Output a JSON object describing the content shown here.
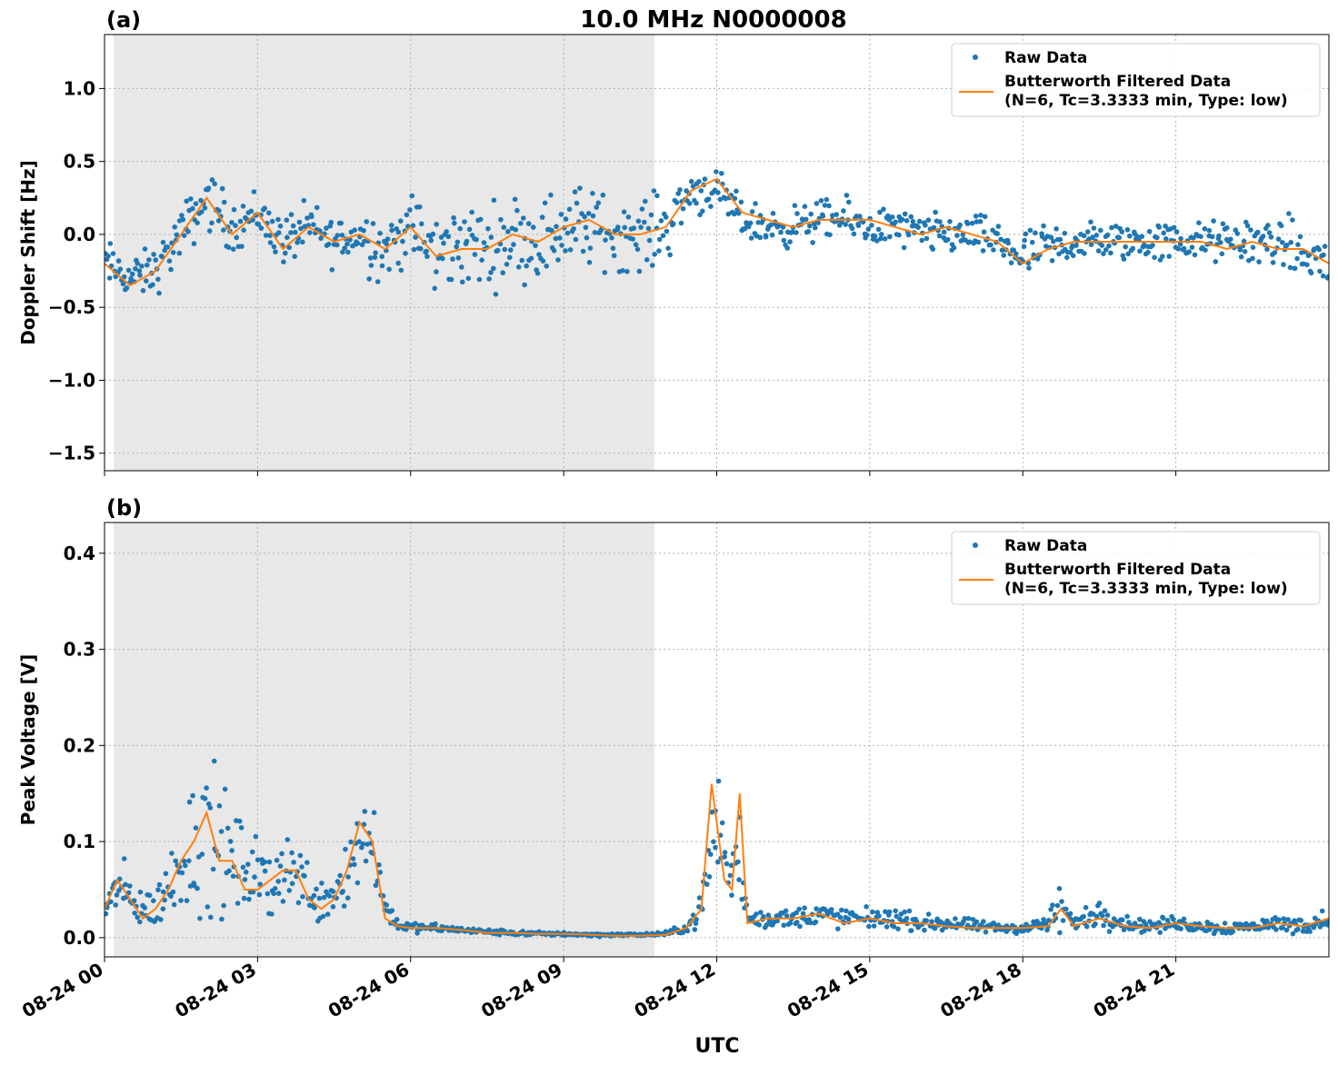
{
  "figure": {
    "title": "10.0 MHz N0000008",
    "xlabel": "UTC"
  },
  "chart_data": [
    {
      "type": "scatter",
      "panel_label": "(a)",
      "ylabel": "Doppler Shift [Hz]",
      "xlim": [
        0,
        24
      ],
      "ylim": [
        -1.62,
        1.37
      ],
      "yticks": [
        1.0,
        0.5,
        0.0,
        -0.5,
        -1.0,
        -1.5
      ],
      "ytick_labels": [
        "1.0",
        "0.5",
        "0.0",
        "−0.5",
        "−1.0",
        "−1.5"
      ],
      "xticks": [
        0,
        3,
        6,
        9,
        12,
        15,
        18,
        21
      ],
      "xtick_labels": [
        "",
        "",
        "",
        "",
        "",
        "",
        "",
        ""
      ],
      "shaded_region": [
        0.18,
        10.78
      ],
      "grid": true,
      "legend": {
        "placement": "top-right",
        "entries": [
          "Raw Data",
          "Butterworth Filtered Data",
          "(N=6, Tc=3.3333 min, Type: low)"
        ]
      },
      "series": [
        {
          "name": "Raw Data",
          "kind": "points",
          "x": [
            0.0,
            0.5,
            1.0,
            1.5,
            2.0,
            2.5,
            3.0,
            3.5,
            4.0,
            4.5,
            5.0,
            5.5,
            6.0,
            6.5,
            7.0,
            7.5,
            8.0,
            8.5,
            9.0,
            9.5,
            10.0,
            10.5,
            11.0,
            11.5,
            12.0,
            12.5,
            13.0,
            13.5,
            14.0,
            14.5,
            15.0,
            15.5,
            16.0,
            16.5,
            17.0,
            17.5,
            18.0,
            18.5,
            19.0,
            19.5,
            20.0,
            20.5,
            21.0,
            21.5,
            22.0,
            22.5,
            23.0,
            23.5,
            24.0
          ],
          "y": [
            -0.2,
            -0.3,
            -0.25,
            0.0,
            0.25,
            0.05,
            0.15,
            -0.05,
            0.05,
            -0.05,
            0.0,
            -0.1,
            0.05,
            -0.15,
            -0.05,
            -0.1,
            0.0,
            -0.05,
            0.05,
            0.05,
            0.0,
            0.0,
            0.05,
            0.3,
            0.3,
            0.1,
            0.05,
            0.05,
            0.1,
            0.1,
            0.05,
            0.05,
            0.0,
            0.0,
            0.0,
            -0.05,
            -0.15,
            -0.1,
            -0.05,
            -0.05,
            -0.05,
            -0.05,
            -0.05,
            -0.05,
            -0.05,
            -0.05,
            -0.05,
            -0.15,
            -0.2
          ],
          "spread": [
            0.25,
            0.2,
            0.25,
            0.25,
            0.3,
            0.25,
            0.25,
            0.25,
            0.25,
            0.25,
            0.3,
            0.35,
            0.35,
            0.4,
            0.45,
            0.4,
            0.4,
            0.4,
            0.45,
            0.4,
            0.35,
            0.35,
            0.35,
            0.25,
            0.2,
            0.2,
            0.2,
            0.2,
            0.2,
            0.2,
            0.2,
            0.2,
            0.2,
            0.2,
            0.2,
            0.2,
            0.25,
            0.25,
            0.2,
            0.2,
            0.2,
            0.2,
            0.2,
            0.2,
            0.2,
            0.25,
            0.25,
            0.3,
            0.3
          ]
        },
        {
          "name": "Butterworth Filtered Data",
          "kind": "line",
          "x": [
            0.0,
            0.5,
            1.0,
            1.5,
            2.0,
            2.5,
            3.0,
            3.5,
            4.0,
            4.5,
            5.0,
            5.5,
            6.0,
            6.5,
            7.0,
            7.5,
            8.0,
            8.5,
            9.0,
            9.5,
            10.0,
            10.5,
            11.0,
            11.5,
            12.0,
            12.5,
            13.0,
            13.5,
            14.0,
            14.5,
            15.0,
            15.5,
            16.0,
            16.5,
            17.0,
            17.5,
            18.0,
            18.5,
            19.0,
            19.5,
            20.0,
            20.5,
            21.0,
            21.5,
            22.0,
            22.5,
            23.0,
            23.5,
            24.0
          ],
          "y": [
            -0.2,
            -0.35,
            -0.25,
            0.0,
            0.25,
            0.0,
            0.15,
            -0.1,
            0.05,
            -0.05,
            0.0,
            -0.1,
            0.05,
            -0.15,
            -0.1,
            -0.1,
            0.0,
            -0.05,
            0.05,
            0.1,
            0.0,
            0.0,
            0.05,
            0.3,
            0.38,
            0.15,
            0.1,
            0.05,
            0.1,
            0.1,
            0.1,
            0.05,
            0.0,
            0.05,
            0.0,
            -0.05,
            -0.2,
            -0.1,
            -0.05,
            -0.05,
            -0.05,
            -0.05,
            -0.05,
            -0.05,
            -0.1,
            -0.05,
            -0.1,
            -0.1,
            -0.2
          ]
        }
      ]
    },
    {
      "type": "scatter",
      "panel_label": "(b)",
      "ylabel": "Peak Voltage [V]",
      "xlim": [
        0,
        24
      ],
      "ylim": [
        -0.02,
        0.432
      ],
      "yticks": [
        0.4,
        0.3,
        0.2,
        0.1,
        0.0
      ],
      "ytick_labels": [
        "0.4",
        "0.3",
        "0.2",
        "0.1",
        "0.0"
      ],
      "xticks": [
        0,
        3,
        6,
        9,
        12,
        15,
        18,
        21
      ],
      "xtick_labels": [
        "08-24 00",
        "08-24 03",
        "08-24 06",
        "08-24 09",
        "08-24 12",
        "08-24 15",
        "08-24 18",
        "08-24 21"
      ],
      "shaded_region": [
        0.18,
        10.78
      ],
      "grid": true,
      "legend": {
        "placement": "top-right",
        "entries": [
          "Raw Data",
          "Butterworth Filtered Data",
          "(N=6, Tc=3.3333 min, Type: low)"
        ]
      },
      "series": [
        {
          "name": "Raw Data",
          "kind": "points",
          "x": [
            0.0,
            0.25,
            0.5,
            0.75,
            1.0,
            1.25,
            1.5,
            1.75,
            2.0,
            2.25,
            2.5,
            2.75,
            3.0,
            3.25,
            3.5,
            3.75,
            4.0,
            4.25,
            4.5,
            4.75,
            5.0,
            5.25,
            5.5,
            5.75,
            6.0,
            6.5,
            7.0,
            7.5,
            8.0,
            8.5,
            9.0,
            9.5,
            10.0,
            10.5,
            11.0,
            11.4,
            11.7,
            11.9,
            12.0,
            12.15,
            12.3,
            12.45,
            12.6,
            13.0,
            13.5,
            14.0,
            14.5,
            15.0,
            15.5,
            16.0,
            16.5,
            17.0,
            17.5,
            18.0,
            18.5,
            18.75,
            19.0,
            19.5,
            20.0,
            20.5,
            21.0,
            21.5,
            22.0,
            22.5,
            23.0,
            23.5,
            24.0
          ],
          "y": [
            0.03,
            0.05,
            0.04,
            0.03,
            0.03,
            0.05,
            0.08,
            0.1,
            0.11,
            0.09,
            0.08,
            0.07,
            0.06,
            0.06,
            0.07,
            0.07,
            0.05,
            0.04,
            0.05,
            0.07,
            0.1,
            0.11,
            0.03,
            0.015,
            0.01,
            0.01,
            0.008,
            0.006,
            0.005,
            0.004,
            0.004,
            0.003,
            0.003,
            0.003,
            0.004,
            0.01,
            0.03,
            0.1,
            0.13,
            0.08,
            0.06,
            0.09,
            0.02,
            0.02,
            0.02,
            0.025,
            0.02,
            0.02,
            0.02,
            0.015,
            0.015,
            0.012,
            0.01,
            0.01,
            0.015,
            0.03,
            0.015,
            0.025,
            0.015,
            0.012,
            0.015,
            0.012,
            0.01,
            0.012,
            0.015,
            0.012,
            0.02
          ],
          "spread": [
            0.03,
            0.05,
            0.04,
            0.03,
            0.03,
            0.05,
            0.08,
            0.12,
            0.14,
            0.1,
            0.08,
            0.07,
            0.06,
            0.06,
            0.06,
            0.06,
            0.04,
            0.04,
            0.05,
            0.06,
            0.1,
            0.08,
            0.02,
            0.01,
            0.008,
            0.006,
            0.005,
            0.004,
            0.004,
            0.003,
            0.003,
            0.003,
            0.002,
            0.002,
            0.003,
            0.008,
            0.02,
            0.15,
            0.15,
            0.07,
            0.05,
            0.08,
            0.015,
            0.015,
            0.015,
            0.02,
            0.015,
            0.015,
            0.015,
            0.012,
            0.012,
            0.01,
            0.008,
            0.008,
            0.012,
            0.06,
            0.012,
            0.02,
            0.012,
            0.01,
            0.012,
            0.01,
            0.01,
            0.01,
            0.012,
            0.012,
            0.015
          ]
        },
        {
          "name": "Butterworth Filtered Data",
          "kind": "line",
          "x": [
            0.0,
            0.25,
            0.5,
            0.75,
            1.0,
            1.25,
            1.5,
            1.75,
            2.0,
            2.25,
            2.5,
            2.75,
            3.0,
            3.25,
            3.5,
            3.75,
            4.0,
            4.25,
            4.5,
            4.75,
            5.0,
            5.25,
            5.5,
            5.75,
            6.0,
            6.5,
            7.0,
            7.5,
            8.0,
            8.5,
            9.0,
            9.5,
            10.0,
            10.5,
            11.0,
            11.4,
            11.7,
            11.9,
            12.0,
            12.15,
            12.3,
            12.45,
            12.6,
            13.0,
            13.5,
            14.0,
            14.5,
            15.0,
            15.5,
            16.0,
            16.5,
            17.0,
            17.5,
            18.0,
            18.5,
            18.75,
            19.0,
            19.5,
            20.0,
            20.5,
            21.0,
            21.5,
            22.0,
            22.5,
            23.0,
            23.5,
            24.0
          ],
          "y": [
            0.03,
            0.06,
            0.04,
            0.02,
            0.03,
            0.05,
            0.08,
            0.1,
            0.13,
            0.08,
            0.08,
            0.05,
            0.05,
            0.06,
            0.07,
            0.07,
            0.04,
            0.03,
            0.04,
            0.07,
            0.12,
            0.1,
            0.02,
            0.012,
            0.01,
            0.01,
            0.008,
            0.005,
            0.005,
            0.004,
            0.004,
            0.003,
            0.002,
            0.002,
            0.003,
            0.01,
            0.03,
            0.16,
            0.12,
            0.06,
            0.05,
            0.15,
            0.015,
            0.02,
            0.02,
            0.025,
            0.015,
            0.02,
            0.015,
            0.015,
            0.012,
            0.01,
            0.01,
            0.01,
            0.012,
            0.03,
            0.012,
            0.02,
            0.012,
            0.01,
            0.015,
            0.012,
            0.01,
            0.01,
            0.015,
            0.012,
            0.02
          ]
        }
      ]
    }
  ],
  "colors": {
    "raw": "#1f77b4",
    "filtered": "#ff7f0e",
    "shade": "#e8e8e8",
    "grid": "#b0b0b0"
  }
}
